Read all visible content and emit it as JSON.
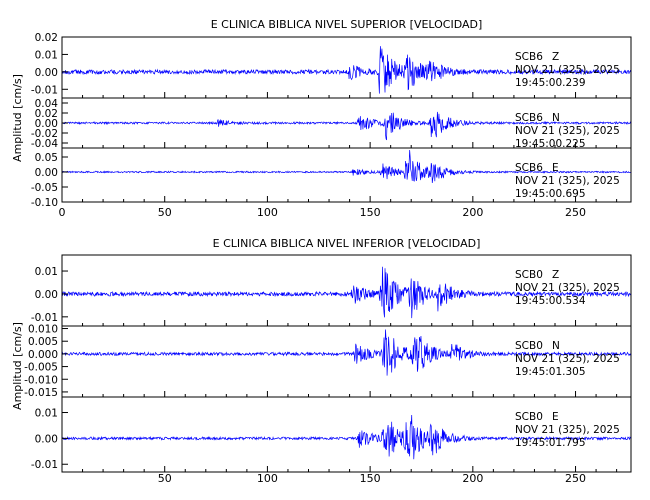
{
  "chart_data": [
    {
      "type": "line",
      "title": "E CLINICA BIBLICA NIVEL SUPERIOR [VELOCIDAD]",
      "ylabel": "Amplitud [cm/s]",
      "xlim": [
        0,
        277
      ],
      "x_ticks": [
        "0",
        "50",
        "100",
        "150",
        "200",
        "250"
      ],
      "grid": false,
      "series_color": "#0000ff",
      "traces": [
        {
          "station": "SCB6",
          "component": "Z",
          "date": "NOV 21 (325), 2025",
          "time": "19:45:00.239",
          "ylim": [
            -0.015,
            0.02
          ],
          "y_ticks": [
            "0.02",
            "0.01",
            "0.00",
            "-0.01"
          ],
          "noise": 0.0012,
          "events": [
            {
              "t": 140,
              "a": 0.004
            },
            {
              "t": 155,
              "a": 0.016
            },
            {
              "t": 168,
              "a": 0.01
            },
            {
              "t": 178,
              "a": 0.006
            }
          ]
        },
        {
          "station": "SCB6",
          "component": "N",
          "date": "NOV 21 (325), 2025",
          "time": "19:45:00.225",
          "ylim": [
            -0.05,
            0.05
          ],
          "y_ticks": [
            "0.04",
            "0.02",
            "0.00",
            "-0.02",
            "-0.04"
          ],
          "noise": 0.002,
          "events": [
            {
              "t": 76,
              "a": 0.006
            },
            {
              "t": 145,
              "a": 0.018
            },
            {
              "t": 158,
              "a": 0.03
            },
            {
              "t": 180,
              "a": 0.038
            }
          ]
        },
        {
          "station": "SCB6",
          "component": "E",
          "date": "NOV 21 (325), 2025",
          "time": "19:45:00.695",
          "ylim": [
            -0.1,
            0.08
          ],
          "y_ticks": [
            "0.05",
            "0.00",
            "-0.05",
            "-0.10"
          ],
          "noise": 0.0025,
          "events": [
            {
              "t": 142,
              "a": 0.012
            },
            {
              "t": 156,
              "a": 0.03
            },
            {
              "t": 168,
              "a": 0.085
            },
            {
              "t": 180,
              "a": 0.03
            }
          ]
        }
      ]
    },
    {
      "type": "line",
      "title": "E CLINICA BIBLICA NIVEL INFERIOR [VELOCIDAD]",
      "ylabel": "Amplitud [cm/s]",
      "xlim": [
        0,
        277
      ],
      "x_ticks": [
        "50",
        "100",
        "150",
        "200",
        "250"
      ],
      "grid": false,
      "series_color": "#0000ff",
      "traces": [
        {
          "station": "SCB0",
          "component": "Z",
          "date": "NOV 21 (325), 2025",
          "time": "19:45:00.534",
          "ylim": [
            -0.014,
            0.017
          ],
          "y_ticks": [
            "0.01",
            "0.00",
            "-0.01"
          ],
          "noise": 0.0009,
          "events": [
            {
              "t": 142,
              "a": 0.004
            },
            {
              "t": 156,
              "a": 0.014
            },
            {
              "t": 170,
              "a": 0.009
            },
            {
              "t": 183,
              "a": 0.006
            }
          ]
        },
        {
          "station": "SCB0",
          "component": "N",
          "date": "NOV 21 (325), 2025",
          "time": "19:45:01.305",
          "ylim": [
            -0.017,
            0.011
          ],
          "y_ticks": [
            "0.010",
            "0.005",
            "0.000",
            "-0.005",
            "-0.010",
            "-0.015"
          ],
          "noise": 0.0006,
          "events": [
            {
              "t": 143,
              "a": 0.004
            },
            {
              "t": 157,
              "a": 0.012
            },
            {
              "t": 171,
              "a": 0.011
            },
            {
              "t": 190,
              "a": 0.004
            }
          ]
        },
        {
          "station": "SCB0",
          "component": "E",
          "date": "NOV 21 (325), 2025",
          "time": "19:45:01.795",
          "ylim": [
            -0.013,
            0.016
          ],
          "y_ticks": [
            "0.01",
            "0.00",
            "-0.01"
          ],
          "noise": 0.0005,
          "events": [
            {
              "t": 145,
              "a": 0.004
            },
            {
              "t": 157,
              "a": 0.011
            },
            {
              "t": 168,
              "a": 0.012
            },
            {
              "t": 180,
              "a": 0.006
            }
          ]
        }
      ]
    }
  ]
}
